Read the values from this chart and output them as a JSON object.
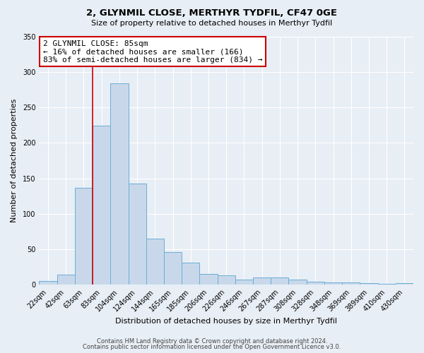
{
  "title1": "2, GLYNMIL CLOSE, MERTHYR TYDFIL, CF47 0GE",
  "title2": "Size of property relative to detached houses in Merthyr Tydfil",
  "xlabel": "Distribution of detached houses by size in Merthyr Tydfil",
  "ylabel": "Number of detached properties",
  "footer1": "Contains HM Land Registry data © Crown copyright and database right 2024.",
  "footer2": "Contains public sector information licensed under the Open Government Licence v3.0.",
  "categories": [
    "22sqm",
    "42sqm",
    "63sqm",
    "83sqm",
    "104sqm",
    "124sqm",
    "144sqm",
    "165sqm",
    "185sqm",
    "206sqm",
    "226sqm",
    "246sqm",
    "267sqm",
    "287sqm",
    "308sqm",
    "328sqm",
    "348sqm",
    "369sqm",
    "389sqm",
    "410sqm",
    "430sqm"
  ],
  "values": [
    5,
    14,
    137,
    224,
    284,
    143,
    65,
    46,
    31,
    15,
    13,
    7,
    10,
    10,
    7,
    4,
    3,
    3,
    2,
    1,
    2
  ],
  "bar_color": "#c8d8ea",
  "bar_edge_color": "#6baed6",
  "vline_color": "#cc0000",
  "vline_index": 3,
  "ylim": [
    0,
    350
  ],
  "yticks": [
    0,
    50,
    100,
    150,
    200,
    250,
    300,
    350
  ],
  "annotation_title": "2 GLYNMIL CLOSE: 85sqm",
  "annotation_line1": "← 16% of detached houses are smaller (166)",
  "annotation_line2": "83% of semi-detached houses are larger (834) →",
  "annotation_box_color": "#ffffff",
  "annotation_box_edge": "#cc0000",
  "bg_color": "#e8eef5",
  "plot_bg_color": "#e8eef5",
  "grid_color": "#ffffff",
  "title_fontsize": 9.5,
  "subtitle_fontsize": 8,
  "tick_fontsize": 7,
  "label_fontsize": 8,
  "ann_fontsize": 8,
  "footer_fontsize": 6
}
